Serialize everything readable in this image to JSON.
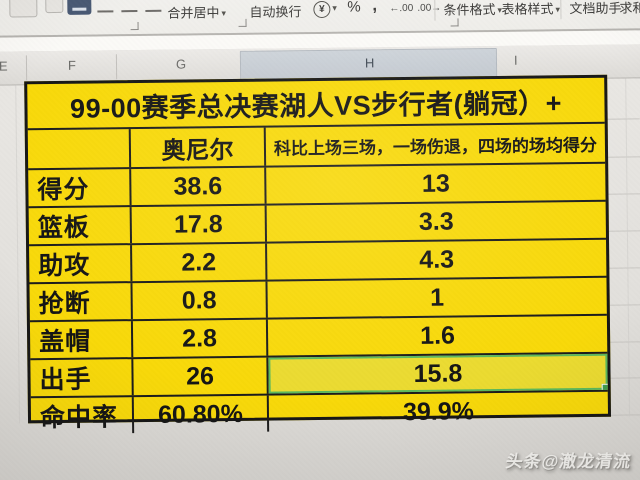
{
  "toolbar": {
    "merge_center_label": "合并居中",
    "wrap_text_label": "自动换行",
    "percent_symbol": "%",
    "comma_symbol": ",",
    "conditional_format_label": "条件格式",
    "table_style_label": "表格样式",
    "doc_assistant_label": "文档助手",
    "sum_label": "求和"
  },
  "icons": {
    "dropdown": "▾",
    "currency": "¥",
    "increase_decimal": "←.00",
    "decrease_decimal": ".00→"
  },
  "sheet": {
    "column_headers": [
      "E",
      "F",
      "G",
      "H",
      "I"
    ],
    "selected_column": "H"
  },
  "table": {
    "title": "99-00赛季总决赛湖人VS步行者(躺冠）+",
    "header": {
      "col1": "",
      "col2": "奥尼尔",
      "col3": "科比上场三场，一场伤退，四场的场均得分"
    },
    "rows": [
      {
        "label": "得分",
        "oneal": "38.6",
        "kobe": "13"
      },
      {
        "label": "篮板",
        "oneal": "17.8",
        "kobe": "3.3"
      },
      {
        "label": "助攻",
        "oneal": "2.2",
        "kobe": "4.3"
      },
      {
        "label": "抢断",
        "oneal": "0.8",
        "kobe": "1"
      },
      {
        "label": "盖帽",
        "oneal": "2.8",
        "kobe": "1.6"
      },
      {
        "label": "出手",
        "oneal": "26",
        "kobe": "15.8",
        "selected": "kobe"
      },
      {
        "label": "命中率",
        "oneal": "60.80%",
        "kobe": "39.9%"
      }
    ]
  },
  "watermark": {
    "text": "头条@澈龙清流"
  },
  "colors": {
    "table_yellow": "#f8d909",
    "selection_green": "#5cb85c",
    "selected_header": "#c9cfd6",
    "border_black": "#1a1a1a"
  }
}
